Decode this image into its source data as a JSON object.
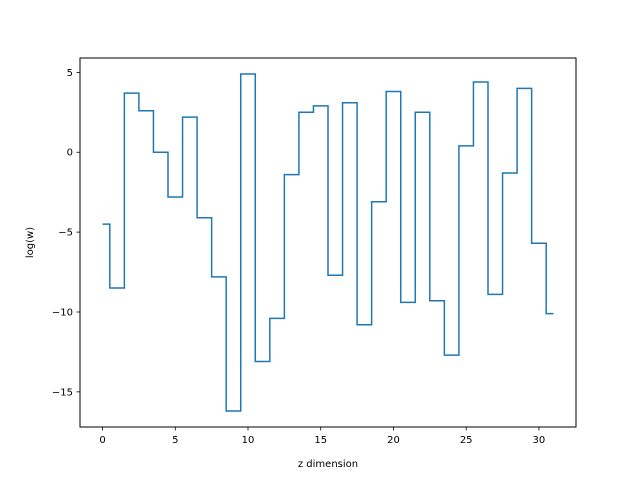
{
  "chart_data": {
    "type": "line",
    "drawstyle": "steps-mid",
    "title": "",
    "xlabel": "z dimension",
    "ylabel": "log(w)",
    "xlim": [
      -1.55,
      32.55
    ],
    "ylim": [
      -17.2,
      5.9
    ],
    "xticks": [
      0,
      5,
      10,
      15,
      20,
      25,
      30
    ],
    "yticks": [
      -15,
      -10,
      -5,
      0,
      5
    ],
    "xtick_labels": [
      "0",
      "5",
      "10",
      "15",
      "20",
      "25",
      "30"
    ],
    "ytick_labels": [
      "−15",
      "−10",
      "−5",
      "0",
      "5"
    ],
    "grid": false,
    "legend": "none",
    "line_color": "#1f77b4",
    "series": [
      {
        "x": [
          0,
          1,
          2,
          3,
          4,
          5,
          6,
          7,
          8,
          9,
          10,
          11,
          12,
          13,
          14,
          15,
          16,
          17,
          18,
          19,
          20,
          21,
          22,
          23,
          24,
          25,
          26,
          27,
          28,
          29,
          30,
          31
        ],
        "values": [
          -4.5,
          -8.5,
          3.7,
          2.6,
          0.0,
          -2.8,
          2.2,
          -4.1,
          -7.8,
          -16.2,
          4.9,
          -13.1,
          -10.4,
          -1.4,
          2.5,
          2.9,
          -7.7,
          3.1,
          -10.8,
          -3.1,
          3.8,
          -9.4,
          2.5,
          -9.3,
          -12.7,
          0.4,
          4.4,
          -8.9,
          -1.3,
          4.0,
          -5.7,
          -10.1
        ]
      }
    ]
  }
}
